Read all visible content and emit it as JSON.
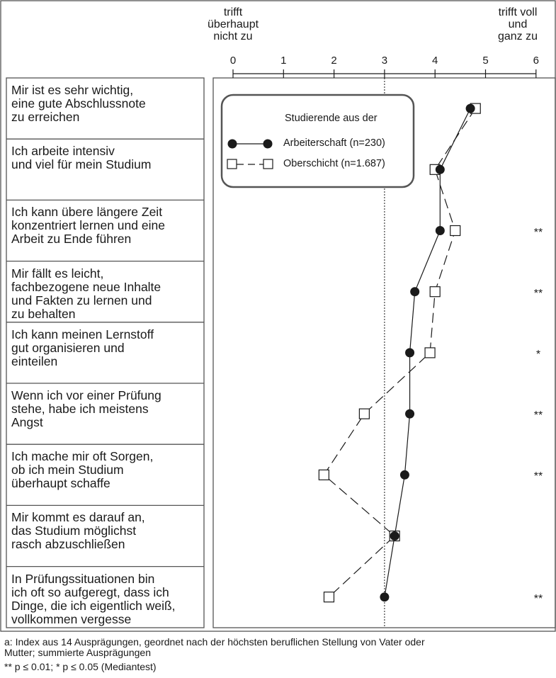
{
  "chart_data": {
    "type": "line",
    "orientation": "horizontal-dot-plot",
    "header_left": "trifft\nüberhaupt\nnicht zu",
    "header_right": "trifft voll\nund\nganz zu",
    "x_ticks": [
      "0",
      "1",
      "2",
      "3",
      "4",
      "5",
      "6"
    ],
    "xlim": [
      0,
      6
    ],
    "reference_line": 3,
    "legend_title": "Studierende aus der",
    "categories": [
      "Mir ist es sehr wichtig,\neine gute Abschlussnote\nzu erreichen",
      "Ich arbeite intensiv\nund viel für mein Studium",
      "Ich kann übere längere Zeit\nkonzentriert lernen und eine\nArbeit zu Ende führen",
      "Mir fällt es leicht,\nfachbezogene neue Inhalte\nund Fakten zu lernen und\nzu behalten",
      "Ich kann meinen Lernstoff\ngut organisieren und\neinteilen",
      "Wenn ich vor einer Prüfung\nstehe, habe ich meistens\nAngst",
      "Ich mache mir oft Sorgen,\nob ich mein Studium\nüberhaupt schaffe",
      "Mir kommt es darauf an,\ndas Studium möglichst\nrasch abzuschließen",
      "In Prüfungssituationen bin\nich oft so aufgeregt, dass ich\nDinge, die ich eigentlich weiß,\nvollkommen vergesse"
    ],
    "series": [
      {
        "name": "Arbeiterschaft (n=230)",
        "marker": "filled-circle",
        "line": "solid",
        "values": [
          4.7,
          4.1,
          4.1,
          3.6,
          3.5,
          3.5,
          3.4,
          3.2,
          3.0
        ]
      },
      {
        "name": "Oberschicht (n=1.687)",
        "marker": "open-square",
        "line": "dashed",
        "values": [
          4.8,
          4.0,
          4.4,
          4.0,
          3.9,
          2.6,
          1.8,
          3.2,
          1.9
        ]
      }
    ],
    "significance": [
      "",
      "",
      "**",
      "**",
      "*",
      "**",
      "**",
      "",
      "**"
    ]
  },
  "footnotes": {
    "a": "a: Index aus 14 Ausprägungen, geordnet nach der höchsten beruflichen Stellung von Vater oder\n    Mutter; summierte Ausprägungen",
    "sig": "** p ≤ 0.01; * p ≤ 0.05 (Mediantest)"
  },
  "colors": {
    "line": "#1a1a1a",
    "frame": "#555555",
    "background": "#ffffff"
  }
}
